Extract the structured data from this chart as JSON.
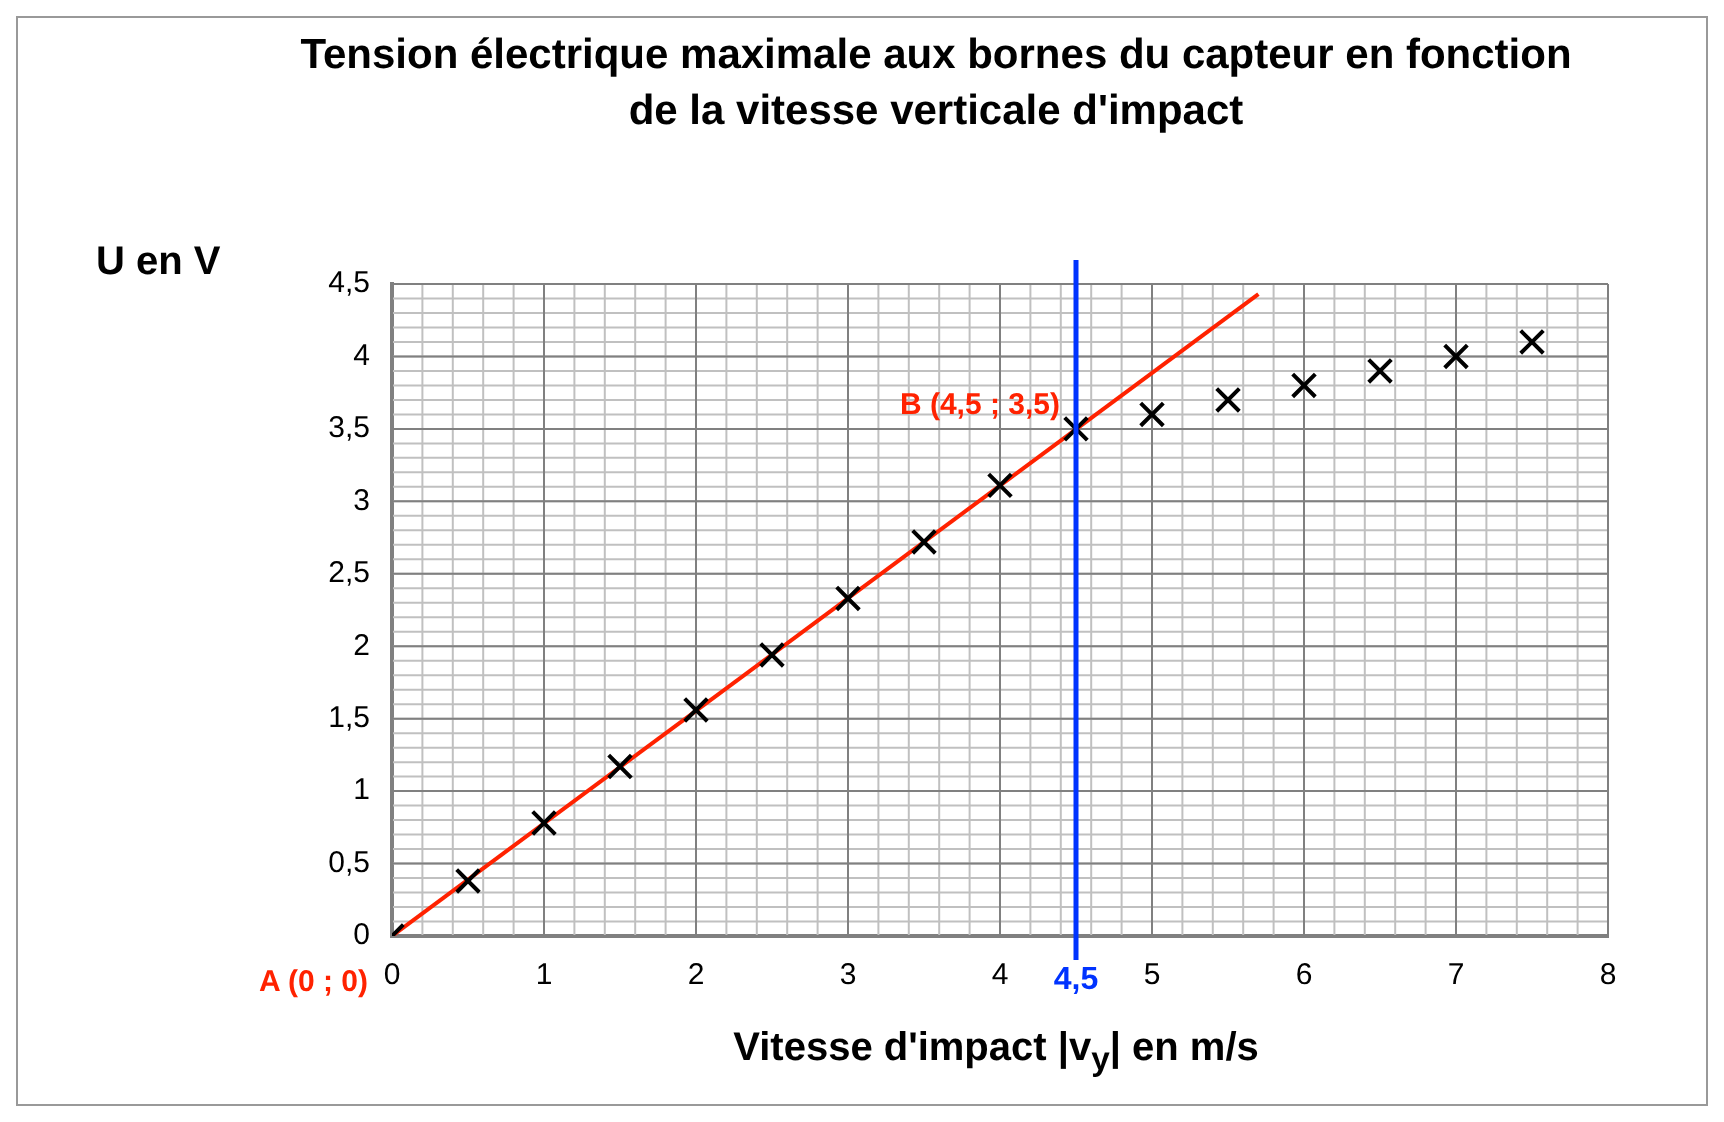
{
  "chart_data": {
    "type": "scatter",
    "title": "Tension électrique maximale aux bornes du capteur en fonction de la vitesse verticale d'impact",
    "xlabel": "Vitesse d'impact |v$_{y}$|  en m/s",
    "ylabel": "U en V",
    "xlim": [
      0,
      8
    ],
    "xticks": [
      0,
      1,
      2,
      3,
      4,
      5,
      6,
      7,
      8
    ],
    "ylim": [
      0,
      4.5
    ],
    "yticks": [
      0,
      {
        "value": 0.5,
        "label": "0,5"
      },
      1,
      {
        "value": 1.5,
        "label": "1,5"
      },
      2,
      {
        "value": 2.5,
        "label": "2,5"
      },
      3,
      {
        "value": 3.5,
        "label": "3,5"
      },
      4,
      {
        "value": 4.5,
        "label": "4,5"
      }
    ],
    "grid": true,
    "legend": false,
    "marker": "cross",
    "series": [
      {
        "type": "scatter",
        "color": "#000000",
        "x": [
          0,
          0.5,
          1,
          1.5,
          2,
          2.5,
          3,
          3.5,
          4,
          4.5,
          5,
          5.5,
          6,
          6.5,
          7,
          7.5
        ],
        "values": [
          0,
          0.38,
          0.78,
          1.17,
          1.56,
          1.94,
          2.33,
          2.72,
          3.11,
          3.5,
          3.6,
          3.7,
          3.8,
          3.9,
          4.0,
          4.1
        ]
      },
      {
        "type": "line",
        "color": "#ff2200",
        "marker": "none",
        "x": [
          0,
          5.7
        ],
        "values": [
          0,
          4.43
        ]
      }
    ],
    "ref_lines": [
      {
        "axis": "x",
        "value": 4.5,
        "label": "4,5",
        "color": "#0033ff"
      }
    ],
    "annotations": [
      {
        "text": "A (0 ; 0)",
        "x": 0,
        "y": 0
      },
      {
        "text": "B (4,5 ; 3,5)",
        "x": 4.5,
        "y": 3.5
      }
    ]
  }
}
